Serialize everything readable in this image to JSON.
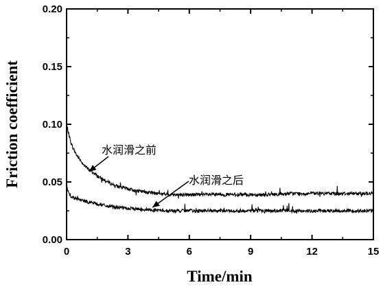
{
  "chart_data": {
    "type": "line",
    "xlabel": "Time/min",
    "ylabel": "Friction coefficient",
    "xlim": [
      0,
      15
    ],
    "ylim": [
      0,
      0.2
    ],
    "xticks": [
      0,
      3,
      6,
      9,
      12,
      15
    ],
    "yticks": [
      0.0,
      0.05,
      0.1,
      0.15,
      0.2
    ],
    "xtick_labels": [
      "0",
      "3",
      "6",
      "9",
      "12",
      "15"
    ],
    "ytick_labels": [
      "0.00",
      "0.05",
      "0.10",
      "0.15",
      "0.20"
    ],
    "grid": false,
    "legend": "none",
    "series": [
      {
        "name": "水润滑之前",
        "color": "#000000",
        "x": [
          0,
          0.1,
          0.2,
          0.3,
          0.5,
          0.7,
          1.0,
          1.3,
          1.6,
          2.0,
          2.5,
          3.0,
          3.5,
          4.0,
          5.0,
          6.0,
          7.0,
          8.0,
          9.0,
          10.0,
          11.0,
          12.0,
          13.0,
          14.0,
          15.0
        ],
        "values": [
          0.1,
          0.092,
          0.085,
          0.08,
          0.073,
          0.068,
          0.062,
          0.058,
          0.054,
          0.05,
          0.046,
          0.044,
          0.042,
          0.041,
          0.039,
          0.039,
          0.039,
          0.039,
          0.039,
          0.039,
          0.04,
          0.04,
          0.04,
          0.04,
          0.04
        ]
      },
      {
        "name": "水润滑之后",
        "color": "#000000",
        "x": [
          0,
          0.1,
          0.2,
          0.4,
          0.7,
          1.0,
          1.5,
          2.0,
          2.5,
          3.0,
          4.0,
          5.0,
          6.0,
          7.0,
          8.0,
          9.0,
          10.0,
          11.0,
          12.0,
          13.0,
          14.0,
          15.0
        ],
        "values": [
          0.046,
          0.041,
          0.038,
          0.036,
          0.034,
          0.033,
          0.031,
          0.029,
          0.028,
          0.027,
          0.026,
          0.025,
          0.025,
          0.025,
          0.025,
          0.025,
          0.025,
          0.025,
          0.025,
          0.025,
          0.025,
          0.025
        ]
      }
    ],
    "annotations": [
      {
        "text": "水润滑之前",
        "target_x": 1.1,
        "target_y": 0.059
      },
      {
        "text": "水润滑之后",
        "target_x": 4.2,
        "target_y": 0.028
      }
    ]
  }
}
